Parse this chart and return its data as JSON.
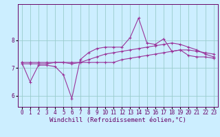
{
  "xlabel": "Windchill (Refroidissement éolien,°C)",
  "bg_color": "#cceeff",
  "grid_color": "#99cccc",
  "line_color": "#993399",
  "xlim": [
    -0.5,
    23.5
  ],
  "ylim": [
    5.6,
    9.3
  ],
  "x": [
    0,
    1,
    2,
    3,
    4,
    5,
    6,
    7,
    8,
    9,
    10,
    11,
    12,
    13,
    14,
    15,
    16,
    17,
    18,
    19,
    20,
    21,
    22,
    23
  ],
  "line1": [
    7.2,
    7.2,
    7.2,
    7.2,
    7.2,
    7.2,
    7.2,
    7.2,
    7.2,
    7.2,
    7.2,
    7.2,
    7.3,
    7.35,
    7.4,
    7.45,
    7.5,
    7.55,
    7.6,
    7.65,
    7.65,
    7.6,
    7.55,
    7.5
  ],
  "line2": [
    7.15,
    7.15,
    7.15,
    7.15,
    7.2,
    7.2,
    7.15,
    7.2,
    7.3,
    7.4,
    7.5,
    7.55,
    7.6,
    7.65,
    7.7,
    7.75,
    7.8,
    7.85,
    7.9,
    7.85,
    7.75,
    7.65,
    7.5,
    7.4
  ],
  "line3": [
    7.2,
    6.5,
    7.1,
    7.1,
    7.05,
    6.75,
    5.9,
    7.3,
    7.55,
    7.7,
    7.75,
    7.75,
    7.75,
    8.1,
    8.8,
    7.9,
    7.85,
    8.05,
    7.6,
    7.65,
    7.45,
    7.4,
    7.4,
    7.35
  ],
  "xticks": [
    0,
    1,
    2,
    3,
    4,
    5,
    6,
    7,
    8,
    9,
    10,
    11,
    12,
    13,
    14,
    15,
    16,
    17,
    18,
    19,
    20,
    21,
    22,
    23
  ],
  "yticks": [
    6,
    7,
    8
  ],
  "tick_fontsize": 5.5,
  "xlabel_fontsize": 6.5
}
